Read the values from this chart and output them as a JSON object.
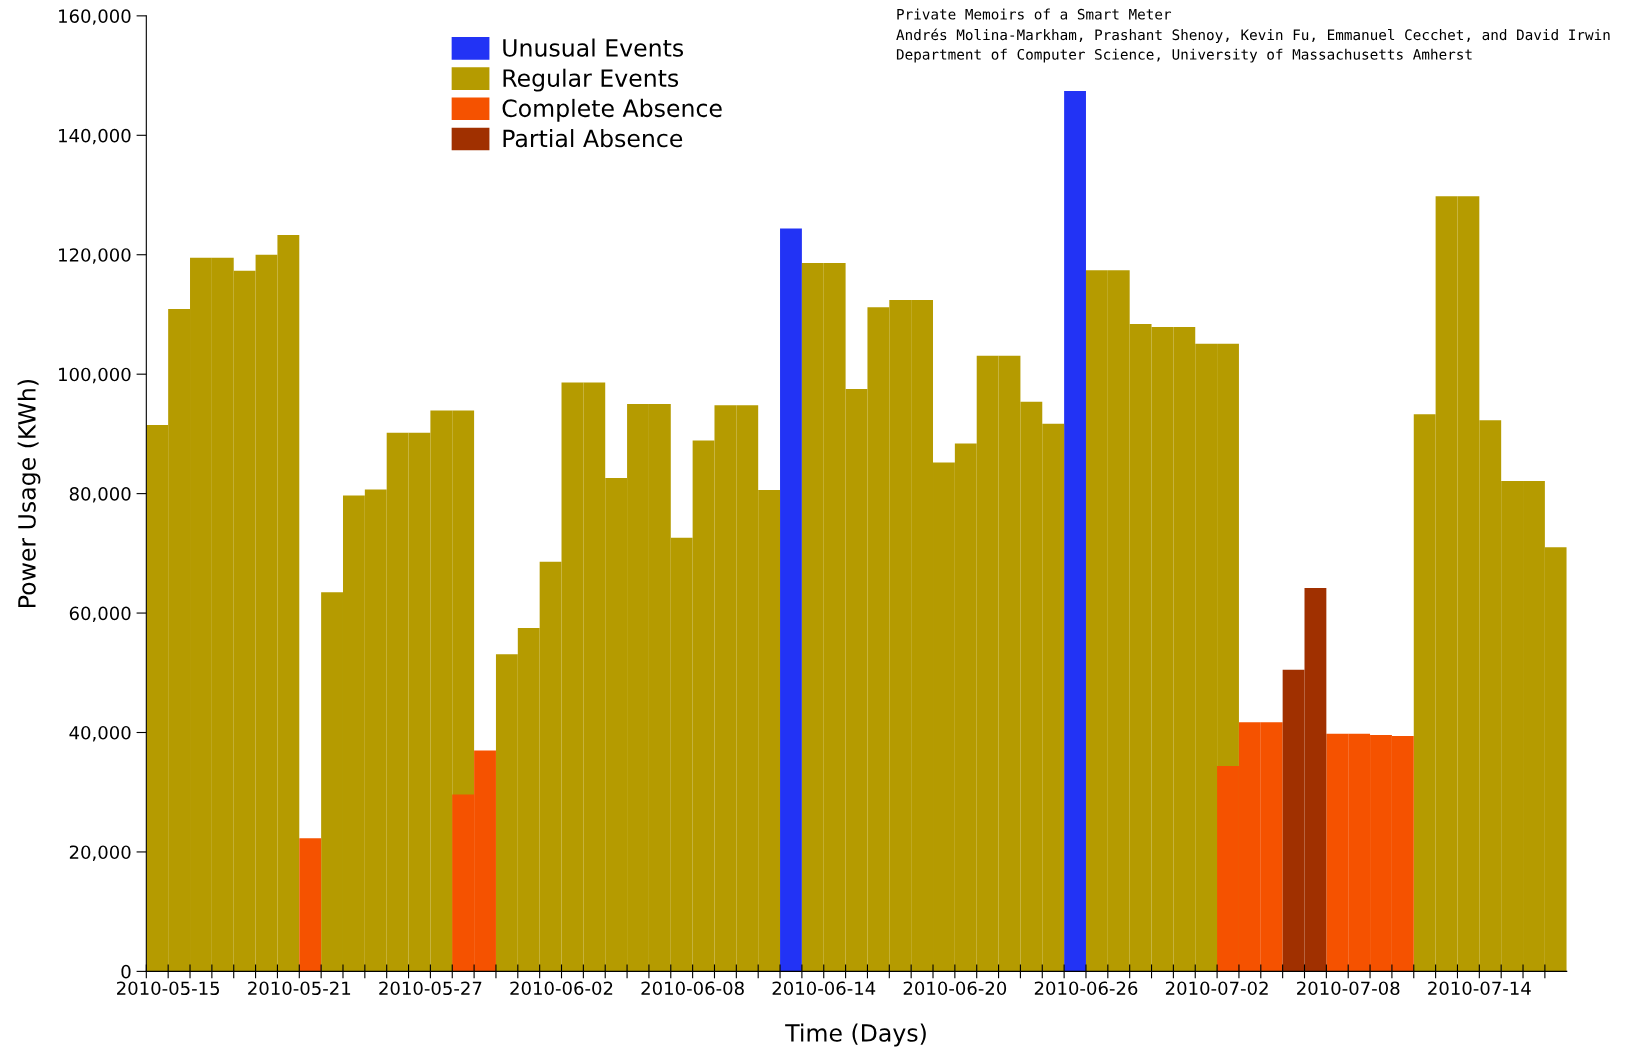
{
  "chart_data": {
    "type": "bar",
    "xlabel": "Time (Days)",
    "ylabel": "Power Usage (KWh)",
    "annotations": [
      "Private Memoirs of a Smart Meter",
      "Andrés Molina-Markham, Prashant Shenoy, Kevin Fu, Emmanuel Cecchet, and David Irwin",
      "Department of Computer Science, University of Massachusetts Amherst"
    ],
    "legend": "top left",
    "grid": false,
    "ylim": [
      0,
      160000
    ],
    "yticks": [
      0,
      {
        "value": 20000,
        "label": "20,000"
      },
      {
        "value": 40000,
        "label": "40,000"
      },
      {
        "value": 60000,
        "label": "60,000"
      },
      {
        "value": 80000,
        "label": "80,000"
      },
      {
        "value": 100000,
        "label": "100,000"
      },
      {
        "value": 120000,
        "label": "120,000"
      },
      {
        "value": 140000,
        "label": "140,000"
      },
      {
        "value": 160000,
        "label": "160,000"
      }
    ],
    "xlim": [
      "2010-05-14",
      "2010-07-18"
    ],
    "xticks": [
      {
        "value": "2010-05-14",
        "label": null
      },
      "2010-05-15",
      {
        "value": "2010-05-16",
        "label": null
      },
      {
        "value": "2010-05-17",
        "label": null
      },
      {
        "value": "2010-05-18",
        "label": null
      },
      {
        "value": "2010-05-19",
        "label": null
      },
      {
        "value": "2010-05-20",
        "label": null
      },
      "2010-05-21",
      {
        "value": "2010-05-22",
        "label": null
      },
      {
        "value": "2010-05-23",
        "label": null
      },
      {
        "value": "2010-05-24",
        "label": null
      },
      {
        "value": "2010-05-25",
        "label": null
      },
      {
        "value": "2010-05-26",
        "label": null
      },
      "2010-05-27",
      {
        "value": "2010-05-28",
        "label": null
      },
      {
        "value": "2010-05-29",
        "label": null
      },
      {
        "value": "2010-05-30",
        "label": null
      },
      {
        "value": "2010-05-31",
        "label": null
      },
      {
        "value": "2010-06-01",
        "label": null
      },
      "2010-06-02",
      {
        "value": "2010-06-03",
        "label": null
      },
      {
        "value": "2010-06-04",
        "label": null
      },
      {
        "value": "2010-06-05",
        "label": null
      },
      {
        "value": "2010-06-06",
        "label": null
      },
      {
        "value": "2010-06-07",
        "label": null
      },
      "2010-06-08",
      {
        "value": "2010-06-09",
        "label": null
      },
      {
        "value": "2010-06-10",
        "label": null
      },
      {
        "value": "2010-06-11",
        "label": null
      },
      {
        "value": "2010-06-12",
        "label": null
      },
      {
        "value": "2010-06-13",
        "label": null
      },
      "2010-06-14",
      {
        "value": "2010-06-15",
        "label": null
      },
      {
        "value": "2010-06-16",
        "label": null
      },
      {
        "value": "2010-06-17",
        "label": null
      },
      {
        "value": "2010-06-18",
        "label": null
      },
      {
        "value": "2010-06-19",
        "label": null
      },
      "2010-06-20",
      {
        "value": "2010-06-21",
        "label": null
      },
      {
        "value": "2010-06-22",
        "label": null
      },
      {
        "value": "2010-06-23",
        "label": null
      },
      {
        "value": "2010-06-24",
        "label": null
      },
      {
        "value": "2010-06-25",
        "label": null
      },
      "2010-06-26",
      {
        "value": "2010-06-27",
        "label": null
      },
      {
        "value": "2010-06-28",
        "label": null
      },
      {
        "value": "2010-06-29",
        "label": null
      },
      {
        "value": "2010-06-30",
        "label": null
      },
      {
        "value": "2010-07-01",
        "label": null
      },
      "2010-07-02",
      {
        "value": "2010-07-03",
        "label": null
      },
      {
        "value": "2010-07-04",
        "label": null
      },
      {
        "value": "2010-07-05",
        "label": null
      },
      {
        "value": "2010-07-06",
        "label": null
      },
      {
        "value": "2010-07-07",
        "label": null
      },
      "2010-07-08",
      {
        "value": "2010-07-09",
        "label": null
      },
      {
        "value": "2010-07-10",
        "label": null
      },
      {
        "value": "2010-07-11",
        "label": null
      },
      {
        "value": "2010-07-12",
        "label": null
      },
      {
        "value": "2010-07-13",
        "label": null
      },
      "2010-07-14",
      {
        "value": "2010-07-15",
        "label": null
      },
      {
        "value": "2010-07-16",
        "label": null
      },
      {
        "value": "2010-07-17",
        "label": null
      }
    ],
    "series": [
      {
        "name": "Unusual Events",
        "color": "#2233f5",
        "x": [
          "2010-06-12",
          "2010-06-25"
        ],
        "values": [
          124400,
          147400
        ]
      },
      {
        "name": "Regular Events",
        "color": "#b59b00",
        "x": [
          "2010-05-14",
          "2010-05-15",
          "2010-05-16",
          "2010-05-17",
          "2010-05-18",
          "2010-05-19",
          "2010-05-20",
          "2010-05-22",
          "2010-05-23",
          "2010-05-24",
          "2010-05-25",
          "2010-05-26",
          "2010-05-27",
          "2010-05-28",
          "2010-05-30",
          "2010-05-31",
          "2010-06-01",
          "2010-06-02",
          "2010-06-03",
          "2010-06-04",
          "2010-06-05",
          "2010-06-06",
          "2010-06-07",
          "2010-06-08",
          "2010-06-09",
          "2010-06-10",
          "2010-06-11",
          "2010-06-13",
          "2010-06-14",
          "2010-06-15",
          "2010-06-16",
          "2010-06-17",
          "2010-06-18",
          "2010-06-19",
          "2010-06-20",
          "2010-06-21",
          "2010-06-22",
          "2010-06-23",
          "2010-06-24",
          "2010-06-26",
          "2010-06-27",
          "2010-06-28",
          "2010-06-29",
          "2010-06-30",
          "2010-07-01",
          "2010-07-02",
          "2010-07-11",
          "2010-07-12",
          "2010-07-13",
          "2010-07-14",
          "2010-07-15",
          "2010-07-16",
          "2010-07-17"
        ],
        "values": [
          91500,
          110900,
          119500,
          119500,
          117300,
          120000,
          123300,
          63500,
          79700,
          80700,
          90200,
          90200,
          93900,
          93900,
          53100,
          57500,
          68600,
          98600,
          98600,
          82600,
          95000,
          95000,
          72600,
          88900,
          94800,
          94800,
          80600,
          118600,
          118600,
          97500,
          111200,
          112400,
          112400,
          85200,
          88400,
          103100,
          103100,
          95400,
          91700,
          117400,
          117400,
          108400,
          107900,
          107900,
          105100,
          105100,
          93300,
          129800,
          129800,
          92300,
          82100,
          82100,
          71000
        ]
      },
      {
        "name": "Complete Absence",
        "color": "#f55200",
        "x": [
          "2010-05-21",
          "2010-05-28",
          "2010-05-29",
          "2010-07-02",
          "2010-07-03",
          "2010-07-04",
          "2010-07-07",
          "2010-07-08",
          "2010-07-09",
          "2010-07-10"
        ],
        "values": [
          22300,
          29600,
          37000,
          34400,
          41700,
          41700,
          39800,
          39800,
          39600,
          39400
        ]
      },
      {
        "name": "Partial Absence",
        "color": "#a03000",
        "x": [
          "2010-07-05",
          "2010-07-06"
        ],
        "values": [
          50500,
          64200
        ]
      }
    ]
  }
}
